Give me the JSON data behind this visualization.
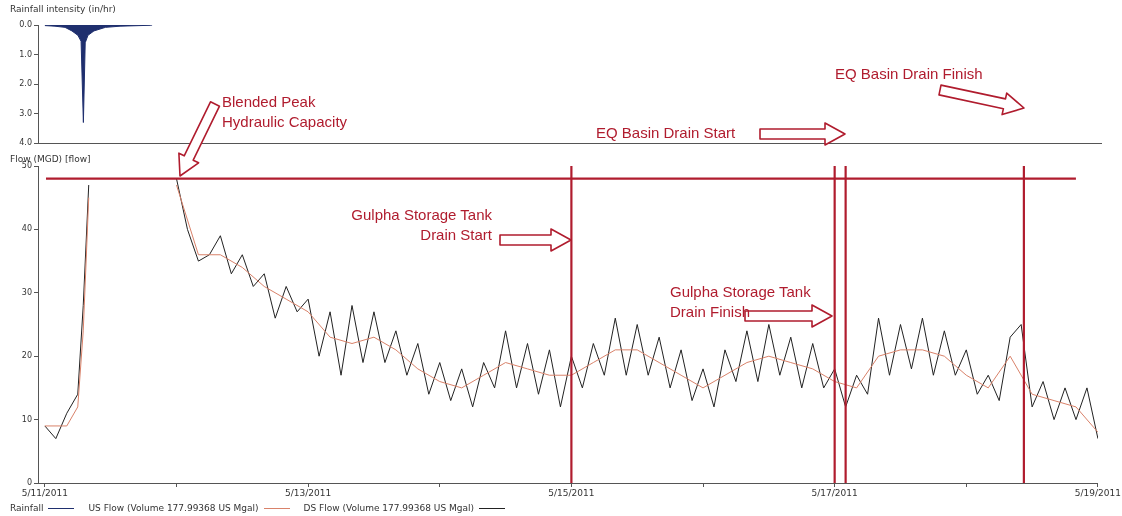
{
  "chart_data": [
    {
      "type": "area",
      "ylabel": "Rainfall intensity (in/hr)",
      "xlim": [
        "2011-05-10T22:45",
        "2011-05-19T00:00"
      ],
      "ylim": [
        4,
        0
      ],
      "yticks": [
        {
          "value": 0,
          "label": "0.0"
        },
        {
          "value": 1,
          "label": "1.0"
        },
        {
          "value": 2,
          "label": "2.0"
        },
        {
          "value": 3,
          "label": "3.0"
        },
        {
          "value": 4,
          "label": "4.0"
        }
      ],
      "tick_labels": "y",
      "legend": "bottom",
      "series": [
        {
          "name": "Rainfall",
          "color": "#1f2f6e",
          "x": [
            "2011-05-11T00:00",
            "2011-05-11T01:50",
            "2011-05-11T03:40",
            "2011-05-11T04:55",
            "2011-05-11T06:00",
            "2011-05-11T06:35",
            "2011-05-11T07:00",
            "2011-05-11T07:20",
            "2011-05-11T07:50",
            "2011-05-11T08:55",
            "2011-05-11T11:00",
            "2011-05-11T13:40",
            "2011-05-11T19:10",
            "2011-05-11T19:30"
          ],
          "values": [
            0.02,
            0.04,
            0.08,
            0.2,
            0.35,
            0.55,
            3.3,
            0.6,
            0.35,
            0.2,
            0.08,
            0.04,
            0.01,
            0
          ]
        }
      ]
    },
    {
      "type": "line",
      "ylabel": "Flow (MGD) [flow]",
      "xlim": [
        "2011-05-10T22:45",
        "2011-05-19T00:00"
      ],
      "xticks": [
        {
          "value": "2011-05-11",
          "label": "5/11/2011"
        },
        {
          "value": "2011-05-12",
          "label": null
        },
        {
          "value": "2011-05-13",
          "label": "5/13/2011"
        },
        {
          "value": "2011-05-14",
          "label": null
        },
        {
          "value": "2011-05-15",
          "label": "5/15/2011"
        },
        {
          "value": "2011-05-16",
          "label": null
        },
        {
          "value": "2011-05-17",
          "label": "5/17/2011"
        },
        {
          "value": "2011-05-18",
          "label": null
        },
        {
          "value": "2011-05-19",
          "label": "5/19/2011"
        }
      ],
      "ylim": [
        0,
        50
      ],
      "yticks": [
        0,
        10,
        20,
        30,
        40,
        50
      ],
      "legend": "bottom",
      "series": [
        {
          "name": "US Flow (Volume 177.99368 US Mgal)",
          "color": "#d9826a",
          "x": [
            "2011-05-11T00:00",
            "2011-05-11T04:00",
            "2011-05-11T06:00",
            "2011-05-11T07:00",
            "2011-05-11T08:00",
            "2011-05-11T10:00",
            "2011-05-12T00:00",
            "2011-05-12T04:00",
            "2011-05-12T08:00",
            "2011-05-12T12:00",
            "2011-05-12T16:00",
            "2011-05-12T20:00",
            "2011-05-13T00:00",
            "2011-05-13T04:00",
            "2011-05-13T08:00",
            "2011-05-13T12:00",
            "2011-05-13T16:00",
            "2011-05-13T20:00",
            "2011-05-14T00:00",
            "2011-05-14T04:00",
            "2011-05-14T08:00",
            "2011-05-14T12:00",
            "2011-05-14T16:00",
            "2011-05-14T20:00",
            "2011-05-15T00:00",
            "2011-05-15T04:00",
            "2011-05-15T08:00",
            "2011-05-15T12:00",
            "2011-05-15T16:00",
            "2011-05-15T20:00",
            "2011-05-16T00:00",
            "2011-05-16T04:00",
            "2011-05-16T08:00",
            "2011-05-16T12:00",
            "2011-05-16T16:00",
            "2011-05-16T20:00",
            "2011-05-17T00:00",
            "2011-05-17T04:00",
            "2011-05-17T08:00",
            "2011-05-17T12:00",
            "2011-05-17T16:00",
            "2011-05-17T20:00",
            "2011-05-18T00:00",
            "2011-05-18T04:00",
            "2011-05-18T08:00",
            "2011-05-18T12:00",
            "2011-05-18T16:00",
            "2011-05-18T20:00",
            "2011-05-19T00:00"
          ],
          "values": [
            9,
            9,
            12,
            24,
            45,
            null,
            47,
            36,
            36,
            34,
            31,
            29,
            27,
            23,
            22,
            23,
            21,
            18,
            16,
            15,
            17,
            19,
            18,
            17,
            17,
            19,
            21,
            21,
            19,
            17,
            15,
            17,
            19,
            20,
            19,
            18,
            16,
            15,
            20,
            21,
            21,
            20,
            17,
            15,
            20,
            14,
            13,
            12,
            8
          ]
        },
        {
          "name": "DS Flow (Volume 177.99368 US Mgal)",
          "color": "#222222",
          "x": [
            "2011-05-11T00:00",
            "2011-05-11T02:00",
            "2011-05-11T04:00",
            "2011-05-11T06:00",
            "2011-05-11T07:00",
            "2011-05-11T08:00",
            "2011-05-11T10:00",
            "2011-05-12T00:00",
            "2011-05-12T02:00",
            "2011-05-12T04:00",
            "2011-05-12T06:00",
            "2011-05-12T08:00",
            "2011-05-12T10:00",
            "2011-05-12T12:00",
            "2011-05-12T14:00",
            "2011-05-12T16:00",
            "2011-05-12T18:00",
            "2011-05-12T20:00",
            "2011-05-12T22:00",
            "2011-05-13T00:00",
            "2011-05-13T02:00",
            "2011-05-13T04:00",
            "2011-05-13T06:00",
            "2011-05-13T08:00",
            "2011-05-13T10:00",
            "2011-05-13T12:00",
            "2011-05-13T14:00",
            "2011-05-13T16:00",
            "2011-05-13T18:00",
            "2011-05-13T20:00",
            "2011-05-13T22:00",
            "2011-05-14T00:00",
            "2011-05-14T02:00",
            "2011-05-14T04:00",
            "2011-05-14T06:00",
            "2011-05-14T08:00",
            "2011-05-14T10:00",
            "2011-05-14T12:00",
            "2011-05-14T14:00",
            "2011-05-14T16:00",
            "2011-05-14T18:00",
            "2011-05-14T20:00",
            "2011-05-14T22:00",
            "2011-05-15T00:00",
            "2011-05-15T02:00",
            "2011-05-15T04:00",
            "2011-05-15T06:00",
            "2011-05-15T08:00",
            "2011-05-15T10:00",
            "2011-05-15T12:00",
            "2011-05-15T14:00",
            "2011-05-15T16:00",
            "2011-05-15T18:00",
            "2011-05-15T20:00",
            "2011-05-15T22:00",
            "2011-05-16T00:00",
            "2011-05-16T02:00",
            "2011-05-16T04:00",
            "2011-05-16T06:00",
            "2011-05-16T08:00",
            "2011-05-16T10:00",
            "2011-05-16T12:00",
            "2011-05-16T14:00",
            "2011-05-16T16:00",
            "2011-05-16T18:00",
            "2011-05-16T20:00",
            "2011-05-16T22:00",
            "2011-05-17T00:00",
            "2011-05-17T02:00",
            "2011-05-17T04:00",
            "2011-05-17T06:00",
            "2011-05-17T08:00",
            "2011-05-17T10:00",
            "2011-05-17T12:00",
            "2011-05-17T14:00",
            "2011-05-17T16:00",
            "2011-05-17T18:00",
            "2011-05-17T20:00",
            "2011-05-17T22:00",
            "2011-05-18T00:00",
            "2011-05-18T02:00",
            "2011-05-18T04:00",
            "2011-05-18T06:00",
            "2011-05-18T08:00",
            "2011-05-18T10:00",
            "2011-05-18T12:00",
            "2011-05-18T14:00",
            "2011-05-18T16:00",
            "2011-05-18T18:00",
            "2011-05-18T20:00",
            "2011-05-18T22:00",
            "2011-05-19T00:00"
          ],
          "values": [
            9,
            7,
            11,
            14,
            28,
            47,
            null,
            48,
            40,
            35,
            36,
            39,
            33,
            36,
            31,
            33,
            26,
            31,
            27,
            29,
            20,
            27,
            17,
            28,
            19,
            27,
            19,
            24,
            17,
            22,
            14,
            19,
            13,
            18,
            12,
            19,
            15,
            24,
            15,
            22,
            14,
            21,
            12,
            20,
            15,
            22,
            17,
            26,
            17,
            25,
            17,
            23,
            15,
            21,
            13,
            18,
            12,
            21,
            16,
            24,
            16,
            25,
            17,
            23,
            15,
            22,
            15,
            18,
            12,
            17,
            14,
            26,
            17,
            25,
            18,
            26,
            17,
            24,
            17,
            21,
            14,
            17,
            13,
            23,
            25,
            12,
            16,
            10,
            15,
            10,
            15,
            7
          ]
        }
      ],
      "ref_lines": [
        {
          "axis": "y",
          "value": 48,
          "label": "Blended Peak Hydraulic Capacity",
          "color": "#b01c2e"
        },
        {
          "axis": "x",
          "value": "2011-05-15T00:00",
          "label": "Gulpha Storage Tank Drain Start",
          "color": "#b01c2e"
        },
        {
          "axis": "x",
          "value": "2011-05-17T00:00",
          "label": "Gulpha Storage Tank Drain Finish",
          "color": "#b01c2e"
        },
        {
          "axis": "x",
          "value": "2011-05-17T02:00",
          "label": "EQ Basin Drain Start",
          "color": "#b01c2e"
        },
        {
          "axis": "x",
          "value": "2011-05-18T10:30",
          "label": "EQ Basin Drain Finish",
          "color": "#b01c2e"
        }
      ]
    }
  ]
}
